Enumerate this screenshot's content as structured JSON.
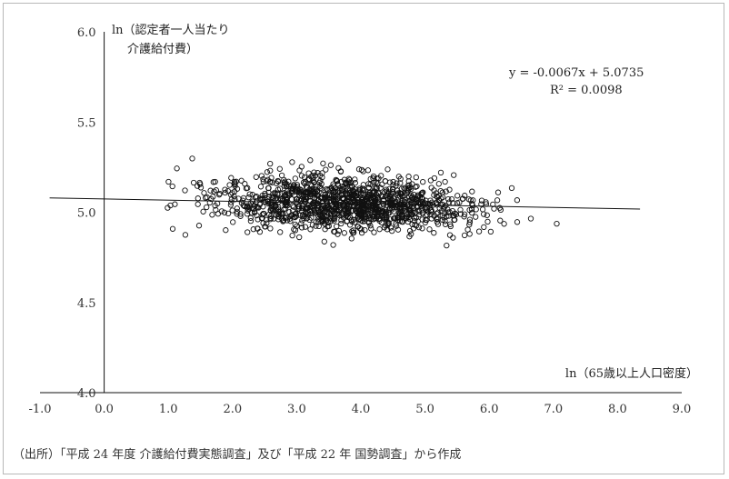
{
  "chart_data": {
    "type": "scatter",
    "ylabel_lines": [
      "ln（認定者一人当たり",
      "介護給付費）"
    ],
    "xlabel": "ln（65歳以上人口密度）",
    "xlim": [
      -1.0,
      9.0
    ],
    "ylim": [
      4.0,
      6.0
    ],
    "x_ticks": [
      "-1.0",
      "0.0",
      "1.0",
      "2.0",
      "3.0",
      "4.0",
      "5.0",
      "6.0",
      "7.0",
      "8.0",
      "9.0"
    ],
    "y_ticks": [
      "4.0",
      "4.5",
      "5.0",
      "5.5",
      "6.0"
    ],
    "regression": {
      "equation": "y = -0.0067x + 5.0735",
      "r2": "R² = 0.0098",
      "slope": -0.0067,
      "intercept": 5.0735
    },
    "x_range_points": [
      -0.75,
      8.35
    ],
    "point_count": 1300,
    "marker": "hollow-circle",
    "grid": false
  },
  "source": "（出所）「平成 24 年度  介護給付費実態調査」及び「平成 22 年  国勢調査」から作成"
}
